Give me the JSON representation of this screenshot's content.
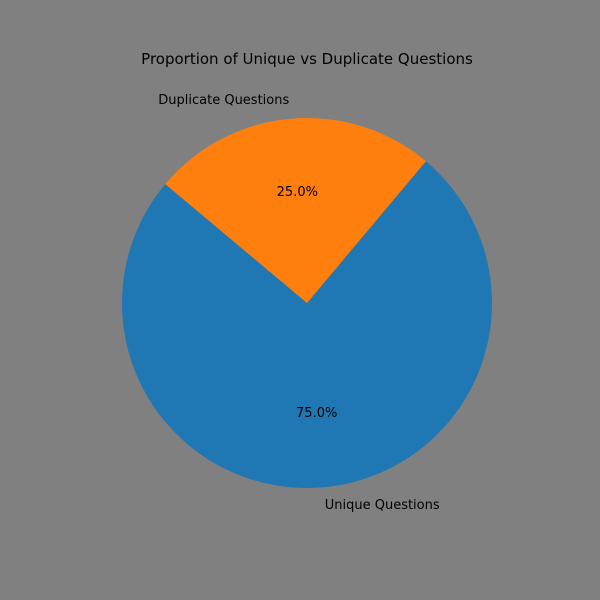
{
  "chart_data": {
    "type": "pie",
    "title": "Proportion of Unique vs Duplicate Questions",
    "categories": [
      "Unique Questions",
      "Duplicate Questions"
    ],
    "values": [
      75.0,
      25.0
    ],
    "autopct": [
      "75.0%",
      "25.0%"
    ],
    "colors": [
      "#1f77b4",
      "#ff7f0e"
    ],
    "start_angle_deg": 140,
    "legend": "none"
  },
  "background_color": "#808080"
}
